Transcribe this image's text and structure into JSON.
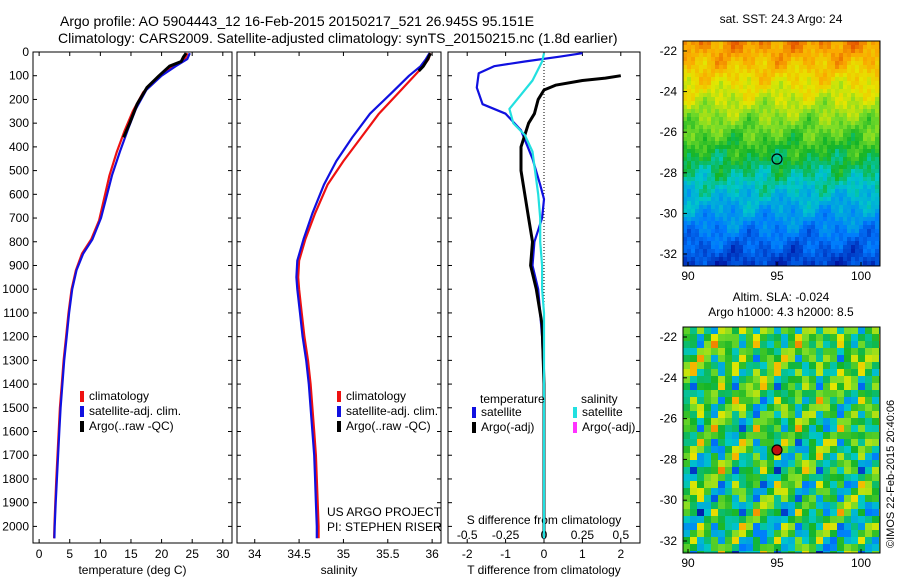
{
  "header": {
    "line1": "Argo profile: AO 5904443_12 16-Feb-2015 20150217_521 26.945S 95.151E",
    "line2": "Climatology: CARS2009. Satellite-adjusted climatology: synTS_20150215.nc (1.8d earlier)"
  },
  "colors": {
    "climatology": "#ee1111",
    "satellite": "#1010e0",
    "argo": "#000000",
    "sat_s": "#22e0e0",
    "argo_s": "#ff33ff"
  },
  "chart_data": [
    {
      "type": "line",
      "name": "temperature",
      "xlabel": "temperature (deg C)",
      "xlim": [
        -1,
        31.5
      ],
      "xticks": [
        0,
        5,
        10,
        15,
        20,
        25,
        30
      ],
      "ylim": [
        0,
        2070
      ],
      "yticks": [
        0,
        100,
        200,
        300,
        400,
        500,
        600,
        700,
        800,
        900,
        1000,
        1100,
        1200,
        1300,
        1400,
        1500,
        1600,
        1700,
        1800,
        1900,
        2000
      ],
      "legend": [
        "climatology",
        "satellite-adj. clim.",
        "Argo(..raw -QC)"
      ],
      "series": [
        {
          "name": "climatology",
          "color": "climatology",
          "points": [
            [
              24.2,
              5
            ],
            [
              23.8,
              30
            ],
            [
              22.0,
              60
            ],
            [
              19.8,
              100
            ],
            [
              17.0,
              170
            ],
            [
              15.3,
              250
            ],
            [
              14.0,
              330
            ],
            [
              12.7,
              420
            ],
            [
              11.5,
              520
            ],
            [
              10.6,
              620
            ],
            [
              9.8,
              710
            ],
            [
              8.5,
              790
            ],
            [
              7.0,
              850
            ],
            [
              6.0,
              920
            ],
            [
              5.3,
              1000
            ],
            [
              4.8,
              1100
            ],
            [
              4.4,
              1200
            ],
            [
              4.0,
              1300
            ],
            [
              3.7,
              1400
            ],
            [
              3.4,
              1500
            ],
            [
              3.2,
              1600
            ],
            [
              3.0,
              1700
            ],
            [
              2.8,
              1800
            ],
            [
              2.65,
              1900
            ],
            [
              2.5,
              2000
            ],
            [
              2.45,
              2050
            ]
          ]
        },
        {
          "name": "satellite-adj. clim.",
          "color": "satellite",
          "points": [
            [
              24.6,
              5
            ],
            [
              24.2,
              30
            ],
            [
              22.3,
              60
            ],
            [
              20.0,
              100
            ],
            [
              17.5,
              160
            ],
            [
              15.8,
              240
            ],
            [
              14.6,
              320
            ],
            [
              13.2,
              420
            ],
            [
              11.9,
              520
            ],
            [
              10.9,
              620
            ],
            [
              10.1,
              700
            ],
            [
              8.7,
              790
            ],
            [
              7.2,
              850
            ],
            [
              6.1,
              920
            ],
            [
              5.4,
              1000
            ],
            [
              4.9,
              1100
            ],
            [
              4.5,
              1200
            ],
            [
              4.1,
              1300
            ],
            [
              3.8,
              1400
            ],
            [
              3.5,
              1500
            ],
            [
              3.3,
              1600
            ],
            [
              3.1,
              1700
            ],
            [
              2.9,
              1800
            ],
            [
              2.7,
              1900
            ],
            [
              2.55,
              2000
            ],
            [
              2.5,
              2050
            ]
          ]
        },
        {
          "name": "Argo(..raw -QC)",
          "color": "argo",
          "points": [
            [
              24.0,
              5
            ],
            [
              23.6,
              20
            ],
            [
              23.2,
              40
            ],
            [
              21.3,
              60
            ],
            [
              19.6,
              100
            ],
            [
              17.6,
              150
            ],
            [
              16.0,
              220
            ],
            [
              14.8,
              300
            ],
            [
              13.8,
              360
            ]
          ]
        }
      ]
    },
    {
      "type": "line",
      "name": "salinity",
      "xlabel": "salinity",
      "xlim": [
        33.8,
        36.1
      ],
      "xticks": [
        34,
        34.5,
        35,
        35.5,
        36
      ],
      "ylim": [
        0,
        2070
      ],
      "legend": [
        "climatology",
        "satellite-adj. clim.",
        "Argo(..raw -QC)"
      ],
      "credit": [
        "US ARGO PROJECT",
        "PI: STEPHEN RISER"
      ],
      "series": [
        {
          "name": "climatology",
          "color": "climatology",
          "points": [
            [
              35.98,
              5
            ],
            [
              35.96,
              30
            ],
            [
              35.9,
              60
            ],
            [
              35.8,
              100
            ],
            [
              35.6,
              180
            ],
            [
              35.4,
              260
            ],
            [
              35.2,
              360
            ],
            [
              35.0,
              460
            ],
            [
              34.82,
              560
            ],
            [
              34.68,
              680
            ],
            [
              34.57,
              790
            ],
            [
              34.5,
              880
            ],
            [
              34.49,
              950
            ],
            [
              34.5,
              1000
            ],
            [
              34.53,
              1100
            ],
            [
              34.56,
              1200
            ],
            [
              34.6,
              1300
            ],
            [
              34.63,
              1400
            ],
            [
              34.65,
              1500
            ],
            [
              34.67,
              1600
            ],
            [
              34.69,
              1700
            ],
            [
              34.7,
              1800
            ],
            [
              34.71,
              1900
            ],
            [
              34.72,
              2000
            ],
            [
              34.72,
              2050
            ]
          ]
        },
        {
          "name": "satellite-adj. clim.",
          "color": "satellite",
          "points": [
            [
              35.97,
              5
            ],
            [
              35.93,
              30
            ],
            [
              35.87,
              60
            ],
            [
              35.74,
              100
            ],
            [
              35.55,
              170
            ],
            [
              35.3,
              260
            ],
            [
              35.1,
              360
            ],
            [
              34.92,
              460
            ],
            [
              34.78,
              560
            ],
            [
              34.65,
              680
            ],
            [
              34.55,
              790
            ],
            [
              34.48,
              880
            ],
            [
              34.47,
              950
            ],
            [
              34.48,
              1000
            ],
            [
              34.51,
              1100
            ],
            [
              34.54,
              1200
            ],
            [
              34.58,
              1300
            ],
            [
              34.61,
              1400
            ],
            [
              34.63,
              1500
            ],
            [
              34.65,
              1600
            ],
            [
              34.67,
              1700
            ],
            [
              34.68,
              1800
            ],
            [
              34.69,
              1900
            ],
            [
              34.7,
              2000
            ],
            [
              34.7,
              2050
            ]
          ]
        },
        {
          "name": "Argo(..raw -QC)",
          "color": "argo",
          "points": [
            [
              35.98,
              5
            ],
            [
              35.95,
              30
            ],
            [
              35.9,
              60
            ],
            [
              35.85,
              80
            ]
          ]
        }
      ]
    },
    {
      "type": "line",
      "name": "difference",
      "xlabel": "T difference from climatology",
      "top_label": "S difference from climatology",
      "xlim": [
        -2.5,
        2.5
      ],
      "xticks": [
        -2,
        -1,
        0,
        1,
        2
      ],
      "top_ticks": [
        "-0.5",
        "-0.25",
        "0",
        "0.25",
        "0.5"
      ],
      "top_tick_positions": [
        -2,
        -1,
        0,
        1,
        2
      ],
      "ylim": [
        0,
        2070
      ],
      "legend_temperature": "temperature",
      "legend_salinity": "salinity",
      "legend_items": [
        "satellite",
        "Argo(-adj)",
        "satellite",
        "Argo(-adj)"
      ],
      "series": [
        {
          "name": "T satellite",
          "color": "satellite",
          "points": [
            [
              1.0,
              5
            ],
            [
              0.4,
              20
            ],
            [
              -0.5,
              40
            ],
            [
              -1.3,
              60
            ],
            [
              -1.7,
              90
            ],
            [
              -1.75,
              150
            ],
            [
              -1.6,
              220
            ],
            [
              -1.0,
              260
            ],
            [
              -0.6,
              330
            ],
            [
              -0.3,
              450
            ],
            [
              -0.1,
              560
            ],
            [
              0.0,
              620
            ],
            [
              -0.05,
              700
            ],
            [
              -0.25,
              800
            ],
            [
              -0.3,
              900
            ],
            [
              -0.15,
              1000
            ],
            [
              -0.05,
              1200
            ],
            [
              0.0,
              1400
            ],
            [
              0.0,
              1700
            ],
            [
              0.0,
              2000
            ],
            [
              0.0,
              2050
            ]
          ]
        },
        {
          "name": "T Argo(-adj)",
          "color": "argo",
          "points": [
            [
              2.0,
              100
            ],
            [
              1.6,
              110
            ],
            [
              1.0,
              120
            ],
            [
              0.3,
              140
            ],
            [
              0.0,
              160
            ],
            [
              -0.15,
              200
            ],
            [
              -0.25,
              260
            ],
            [
              -0.4,
              300
            ],
            [
              -0.6,
              400
            ],
            [
              -0.6,
              500
            ],
            [
              -0.5,
              600
            ],
            [
              -0.4,
              700
            ],
            [
              -0.3,
              800
            ],
            [
              -0.35,
              900
            ],
            [
              -0.2,
              1000
            ],
            [
              -0.05,
              1150
            ],
            [
              0.0,
              1400
            ],
            [
              0.0,
              1700
            ],
            [
              0.0,
              2000
            ],
            [
              0.0,
              2050
            ]
          ]
        },
        {
          "name": "S satellite",
          "color": "sat_s",
          "points": [
            [
              0.0,
              5
            ],
            [
              -0.05,
              40
            ],
            [
              -0.3,
              120
            ],
            [
              -0.6,
              180
            ],
            [
              -0.9,
              240
            ],
            [
              -0.8,
              300
            ],
            [
              -0.5,
              350
            ],
            [
              -0.3,
              420
            ],
            [
              -0.15,
              600
            ],
            [
              -0.1,
              700
            ],
            [
              -0.1,
              800
            ],
            [
              -0.05,
              900
            ],
            [
              -0.05,
              1000
            ],
            [
              0.0,
              1100
            ],
            [
              0.0,
              1300
            ],
            [
              0.0,
              1600
            ],
            [
              0.0,
              2000
            ],
            [
              0.0,
              2050
            ]
          ]
        }
      ]
    }
  ],
  "map_sst": {
    "title": "sat. SST: 24.3 Argo: 24",
    "xticks": [
      "90",
      "95",
      "100"
    ],
    "yticks": [
      "-22",
      "-24",
      "-26",
      "-28",
      "-30",
      "-32"
    ]
  },
  "map_sla": {
    "title1": "Altim. SLA: -0.024",
    "title2": "Argo h1000: 4.3 h2000: 8.5",
    "xticks": [
      "90",
      "95",
      "100"
    ],
    "yticks": [
      "-22",
      "-24",
      "-26",
      "-28",
      "-30",
      "-32"
    ]
  },
  "footer_stamp": "©IMOS 22-Feb-2015 20:40:06"
}
